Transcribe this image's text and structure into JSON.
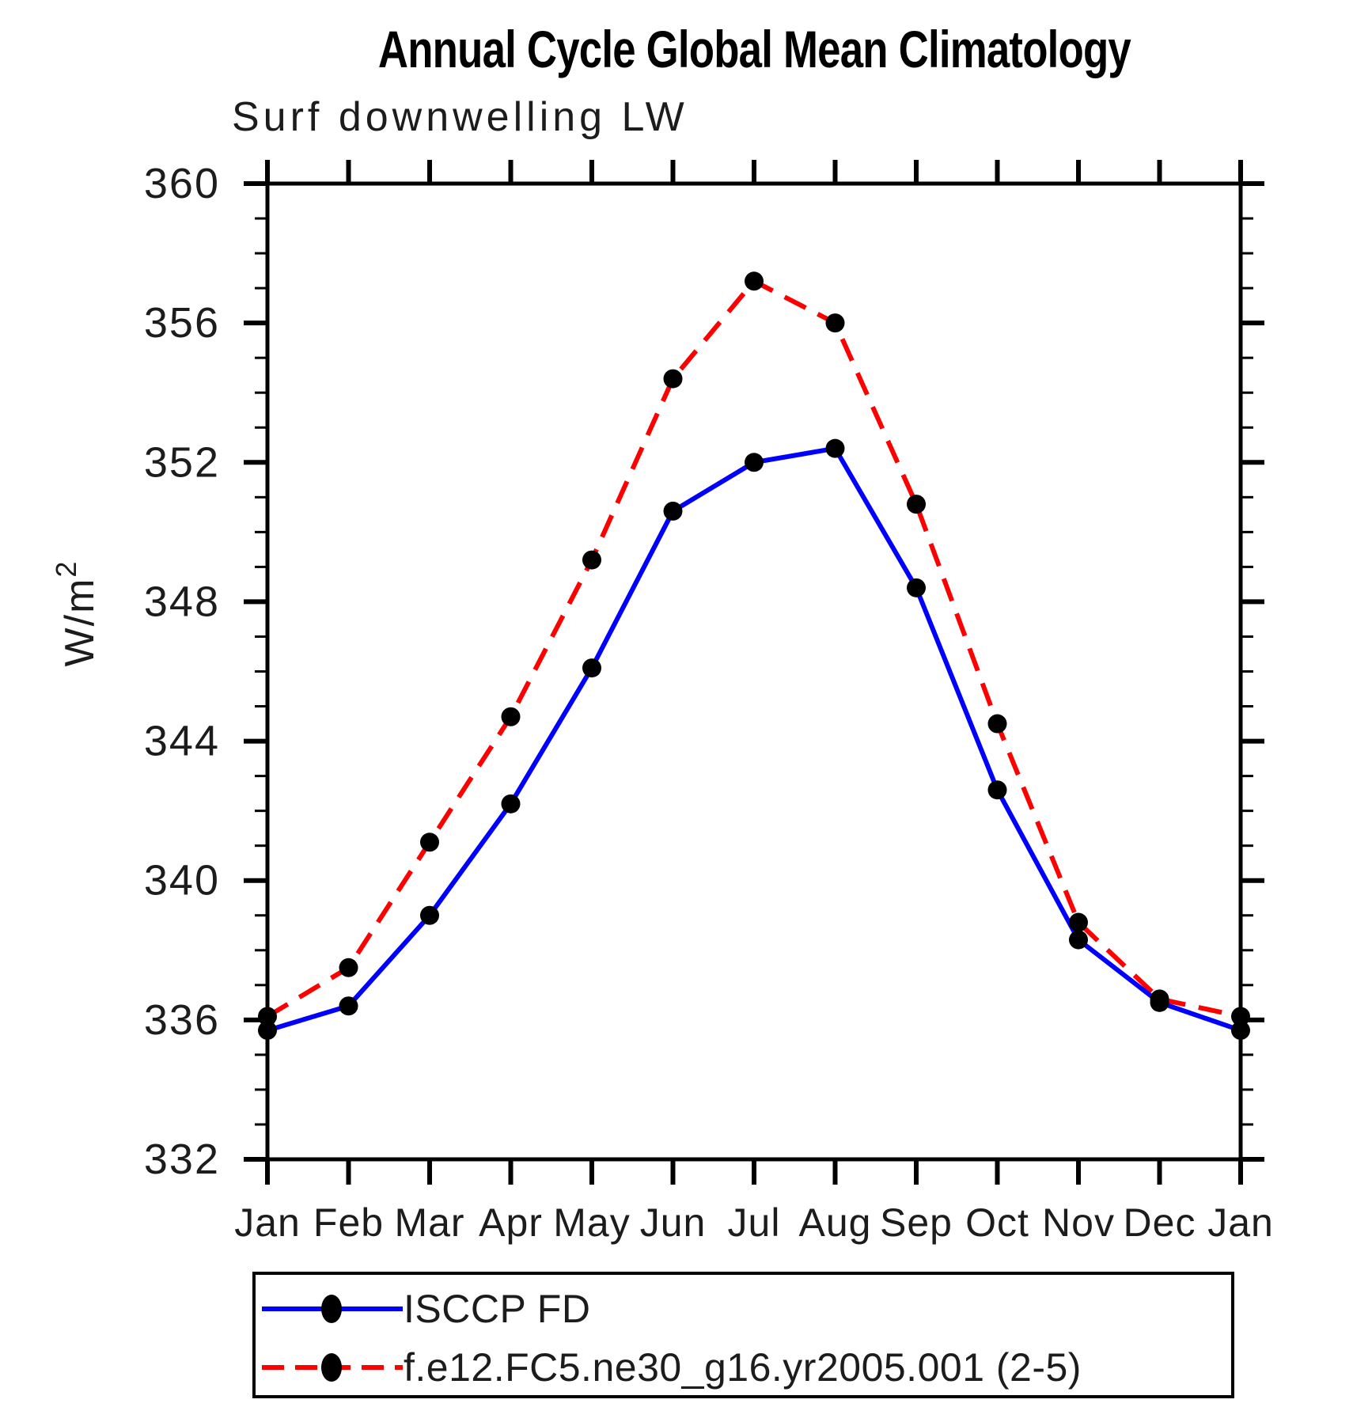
{
  "figure": {
    "background": "#FFFFFF"
  },
  "chart_data": {
    "type": "line",
    "title": "Annual Cycle Global Mean Climatology",
    "subtitle": "Surf downwelling LW",
    "ylabel": "W/m²",
    "ylabel_parts": {
      "base": "W/m",
      "sup": "2"
    },
    "x_tick_labels": [
      "Jan",
      "Feb",
      "Mar",
      "Apr",
      "May",
      "Jun",
      "Jul",
      "Aug",
      "Sep",
      "Oct",
      "Nov",
      "Dec",
      "Jan"
    ],
    "ylim": [
      332,
      360
    ],
    "y_ticks": [
      332,
      336,
      340,
      344,
      348,
      352,
      356,
      360
    ],
    "y_minor_step": 1,
    "grid": false,
    "legend_position": "bottom-left",
    "axis_color": "#000000",
    "text_color": "#1c1c1c",
    "marker_radius_px": 12,
    "series": [
      {
        "name": "ISCCP FD",
        "color": "#0000FF",
        "line_style": "solid",
        "marker": "filled-circle",
        "marker_color": "#000000",
        "values": [
          335.7,
          336.4,
          339.0,
          342.2,
          346.1,
          350.6,
          352.0,
          352.4,
          348.4,
          342.6,
          338.3,
          336.5,
          335.7
        ]
      },
      {
        "name": "f.e12.FC5.ne30_g16.yr2005.001 (2-5)",
        "color": "#FF0000",
        "line_style": "dashed",
        "marker": "filled-circle",
        "marker_color": "#000000",
        "values": [
          336.1,
          337.5,
          341.1,
          344.7,
          349.2,
          354.4,
          357.2,
          356.0,
          350.8,
          344.5,
          338.8,
          336.6,
          336.1
        ]
      }
    ]
  }
}
